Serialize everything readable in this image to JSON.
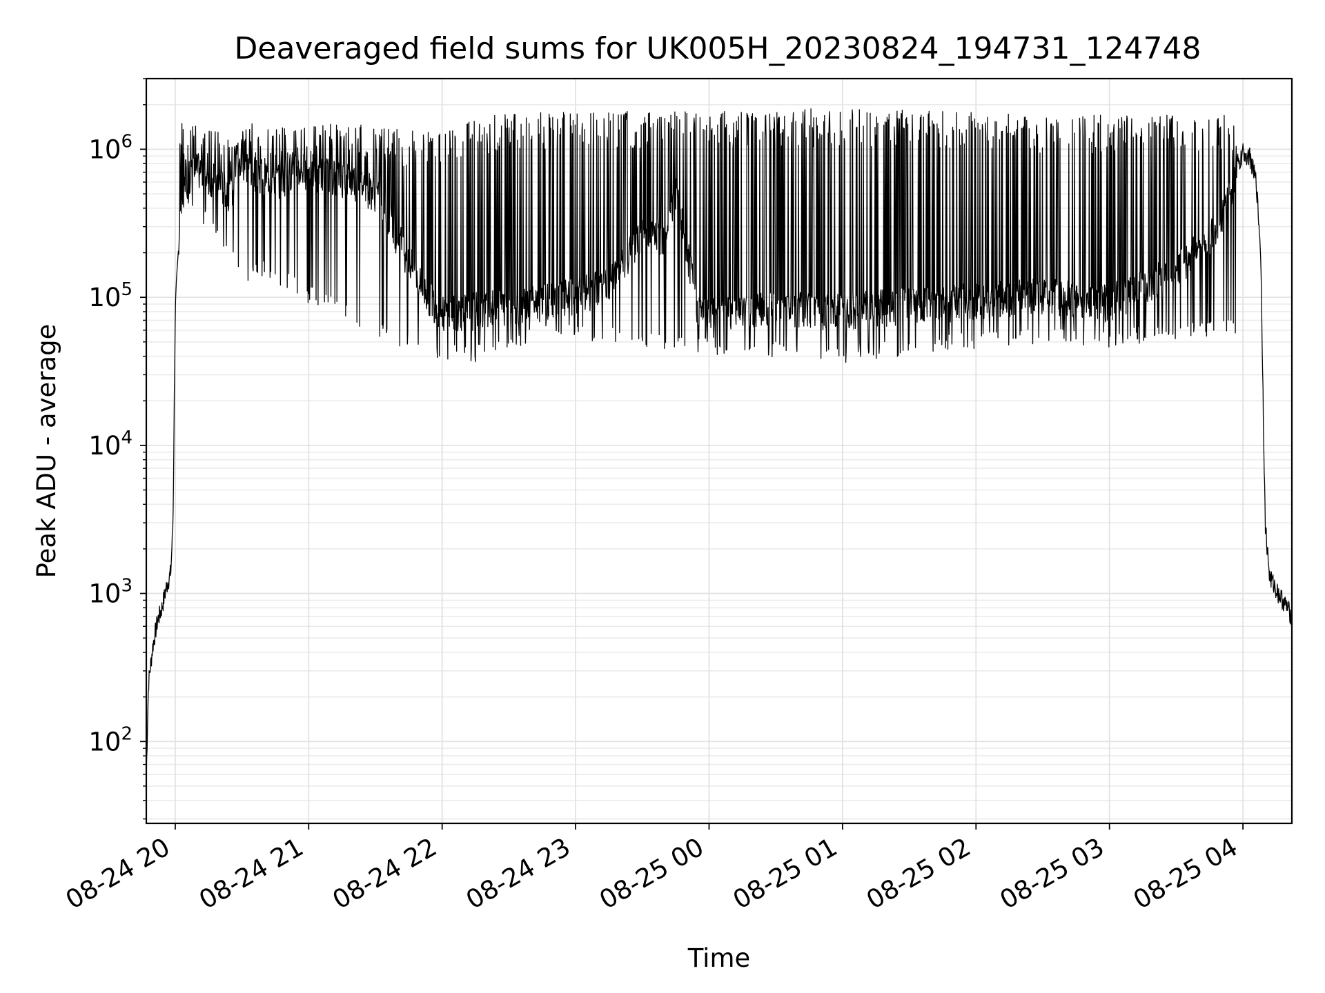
{
  "chart_data": {
    "type": "line",
    "title": "Deaveraged field sums for UK005H_20230824_194731_124748",
    "xlabel": "Time",
    "ylabel": "Peak ADU - average",
    "yscale": "log",
    "ylim": [
      28,
      3000000
    ],
    "xlim": [
      "2023-08-24 19:47",
      "2023-08-25 04:22"
    ],
    "grid": "on (major and minor)",
    "line_color": "#000000",
    "x_ticks": [
      {
        "label": "08-24 20",
        "time": "2023-08-24 20:00"
      },
      {
        "label": "08-24 21",
        "time": "2023-08-24 21:00"
      },
      {
        "label": "08-24 22",
        "time": "2023-08-24 22:00"
      },
      {
        "label": "08-24 23",
        "time": "2023-08-24 23:00"
      },
      {
        "label": "08-25 00",
        "time": "2023-08-25 00:00"
      },
      {
        "label": "08-25 01",
        "time": "2023-08-25 01:00"
      },
      {
        "label": "08-25 02",
        "time": "2023-08-25 02:00"
      },
      {
        "label": "08-25 03",
        "time": "2023-08-25 03:00"
      },
      {
        "label": "08-25 04",
        "time": "2023-08-25 04:00"
      }
    ],
    "y_ticks": [
      {
        "base": "10",
        "exp": "2",
        "value": 100
      },
      {
        "base": "10",
        "exp": "3",
        "value": 1000
      },
      {
        "base": "10",
        "exp": "4",
        "value": 10000
      },
      {
        "base": "10",
        "exp": "5",
        "value": 100000
      },
      {
        "base": "10",
        "exp": "6",
        "value": 1000000
      }
    ],
    "series": [
      {
        "x_unit": "time",
        "points": [
          [
            "2023-08-24 19:47",
            60
          ],
          [
            "2023-08-24 19:48",
            250
          ],
          [
            "2023-08-24 19:50",
            450
          ],
          [
            "2023-08-24 19:52",
            650
          ],
          [
            "2023-08-24 19:54",
            800
          ],
          [
            "2023-08-24 19:56",
            1100
          ],
          [
            "2023-08-24 19:58",
            1400
          ],
          [
            "2023-08-24 19:59",
            3000
          ],
          [
            "2023-08-24 20:00",
            80000
          ],
          [
            "2023-08-24 20:02",
            300000
          ],
          [
            "2023-08-24 20:05",
            600000
          ],
          [
            "2023-08-24 20:10",
            700000
          ],
          [
            "2023-08-24 20:15",
            650000
          ],
          [
            "2023-08-24 20:20",
            550000
          ],
          [
            "2023-08-24 20:25",
            500000
          ],
          [
            "2023-08-24 20:30",
            800000
          ],
          [
            "2023-08-24 20:35",
            700000
          ],
          [
            "2023-08-24 20:40",
            650000
          ],
          [
            "2023-08-24 20:45",
            600000
          ],
          [
            "2023-08-24 20:50",
            650000
          ],
          [
            "2023-08-24 20:55",
            700000
          ],
          [
            "2023-08-24 21:00",
            700000
          ],
          [
            "2023-08-24 21:10",
            650000
          ],
          [
            "2023-08-24 21:20",
            600000
          ],
          [
            "2023-08-24 21:30",
            500000
          ],
          [
            "2023-08-24 21:40",
            250000
          ],
          [
            "2023-08-24 21:50",
            120000
          ],
          [
            "2023-08-24 22:00",
            75000
          ],
          [
            "2023-08-24 22:15",
            80000
          ],
          [
            "2023-08-24 22:30",
            85000
          ],
          [
            "2023-08-24 22:45",
            90000
          ],
          [
            "2023-08-24 23:00",
            100000
          ],
          [
            "2023-08-24 23:15",
            120000
          ],
          [
            "2023-08-24 23:30",
            250000
          ],
          [
            "2023-08-24 23:40",
            250000
          ],
          [
            "2023-08-24 23:45",
            500000
          ],
          [
            "2023-08-24 23:55",
            80000
          ],
          [
            "2023-08-25 00:30",
            80000
          ],
          [
            "2023-08-25 01:00",
            80000
          ],
          [
            "2023-08-25 01:45",
            90000
          ],
          [
            "2023-08-25 02:30",
            100000
          ],
          [
            "2023-08-25 03:00",
            90000
          ],
          [
            "2023-08-25 03:30",
            150000
          ],
          [
            "2023-08-25 03:50",
            300000
          ],
          [
            "2023-08-25 04:00",
            950000
          ],
          [
            "2023-08-25 04:03",
            900000
          ],
          [
            "2023-08-25 04:06",
            600000
          ],
          [
            "2023-08-25 04:08",
            200000
          ],
          [
            "2023-08-25 04:10",
            3000
          ],
          [
            "2023-08-25 04:12",
            1300
          ],
          [
            "2023-08-25 04:16",
            1000
          ],
          [
            "2023-08-25 04:20",
            800
          ],
          [
            "2023-08-25 04:22",
            700
          ]
        ],
        "burst_minima": [
          [
            "2023-08-24 20:05",
            450000
          ],
          [
            "2023-08-24 20:20",
            250000
          ],
          [
            "2023-08-24 20:30",
            120000
          ],
          [
            "2023-08-24 20:40",
            150000
          ],
          [
            "2023-08-24 21:00",
            100000
          ],
          [
            "2023-08-24 21:15",
            80000
          ],
          [
            "2023-08-24 21:30",
            60000
          ],
          [
            "2023-08-24 21:50",
            45000
          ],
          [
            "2023-08-24 22:15",
            40000
          ],
          [
            "2023-08-24 22:45",
            55000
          ],
          [
            "2023-08-24 23:15",
            55000
          ],
          [
            "2023-08-25 00:00",
            45000
          ],
          [
            "2023-08-25 00:30",
            42000
          ],
          [
            "2023-08-25 01:00",
            40000
          ],
          [
            "2023-08-25 01:30",
            45000
          ],
          [
            "2023-08-25 02:00",
            50000
          ],
          [
            "2023-08-25 02:30",
            52000
          ],
          [
            "2023-08-25 03:00",
            50000
          ],
          [
            "2023-08-25 03:40",
            60000
          ]
        ],
        "burst_peaks": [
          [
            "2023-08-24 20:30",
            1500000
          ],
          [
            "2023-08-24 21:00",
            1500000
          ],
          [
            "2023-08-24 21:30",
            1500000
          ],
          [
            "2023-08-24 21:50",
            1300000
          ],
          [
            "2023-08-24 22:30",
            1800000
          ],
          [
            "2023-08-24 23:00",
            1800000
          ],
          [
            "2023-08-24 23:15",
            1800000
          ],
          [
            "2023-08-24 23:45",
            1900000
          ],
          [
            "2023-08-25 00:00",
            1800000
          ],
          [
            "2023-08-25 01:00",
            1900000
          ],
          [
            "2023-08-25 01:45",
            1800000
          ],
          [
            "2023-08-25 02:30",
            1700000
          ],
          [
            "2023-08-25 03:30",
            1700000
          ]
        ]
      }
    ]
  }
}
